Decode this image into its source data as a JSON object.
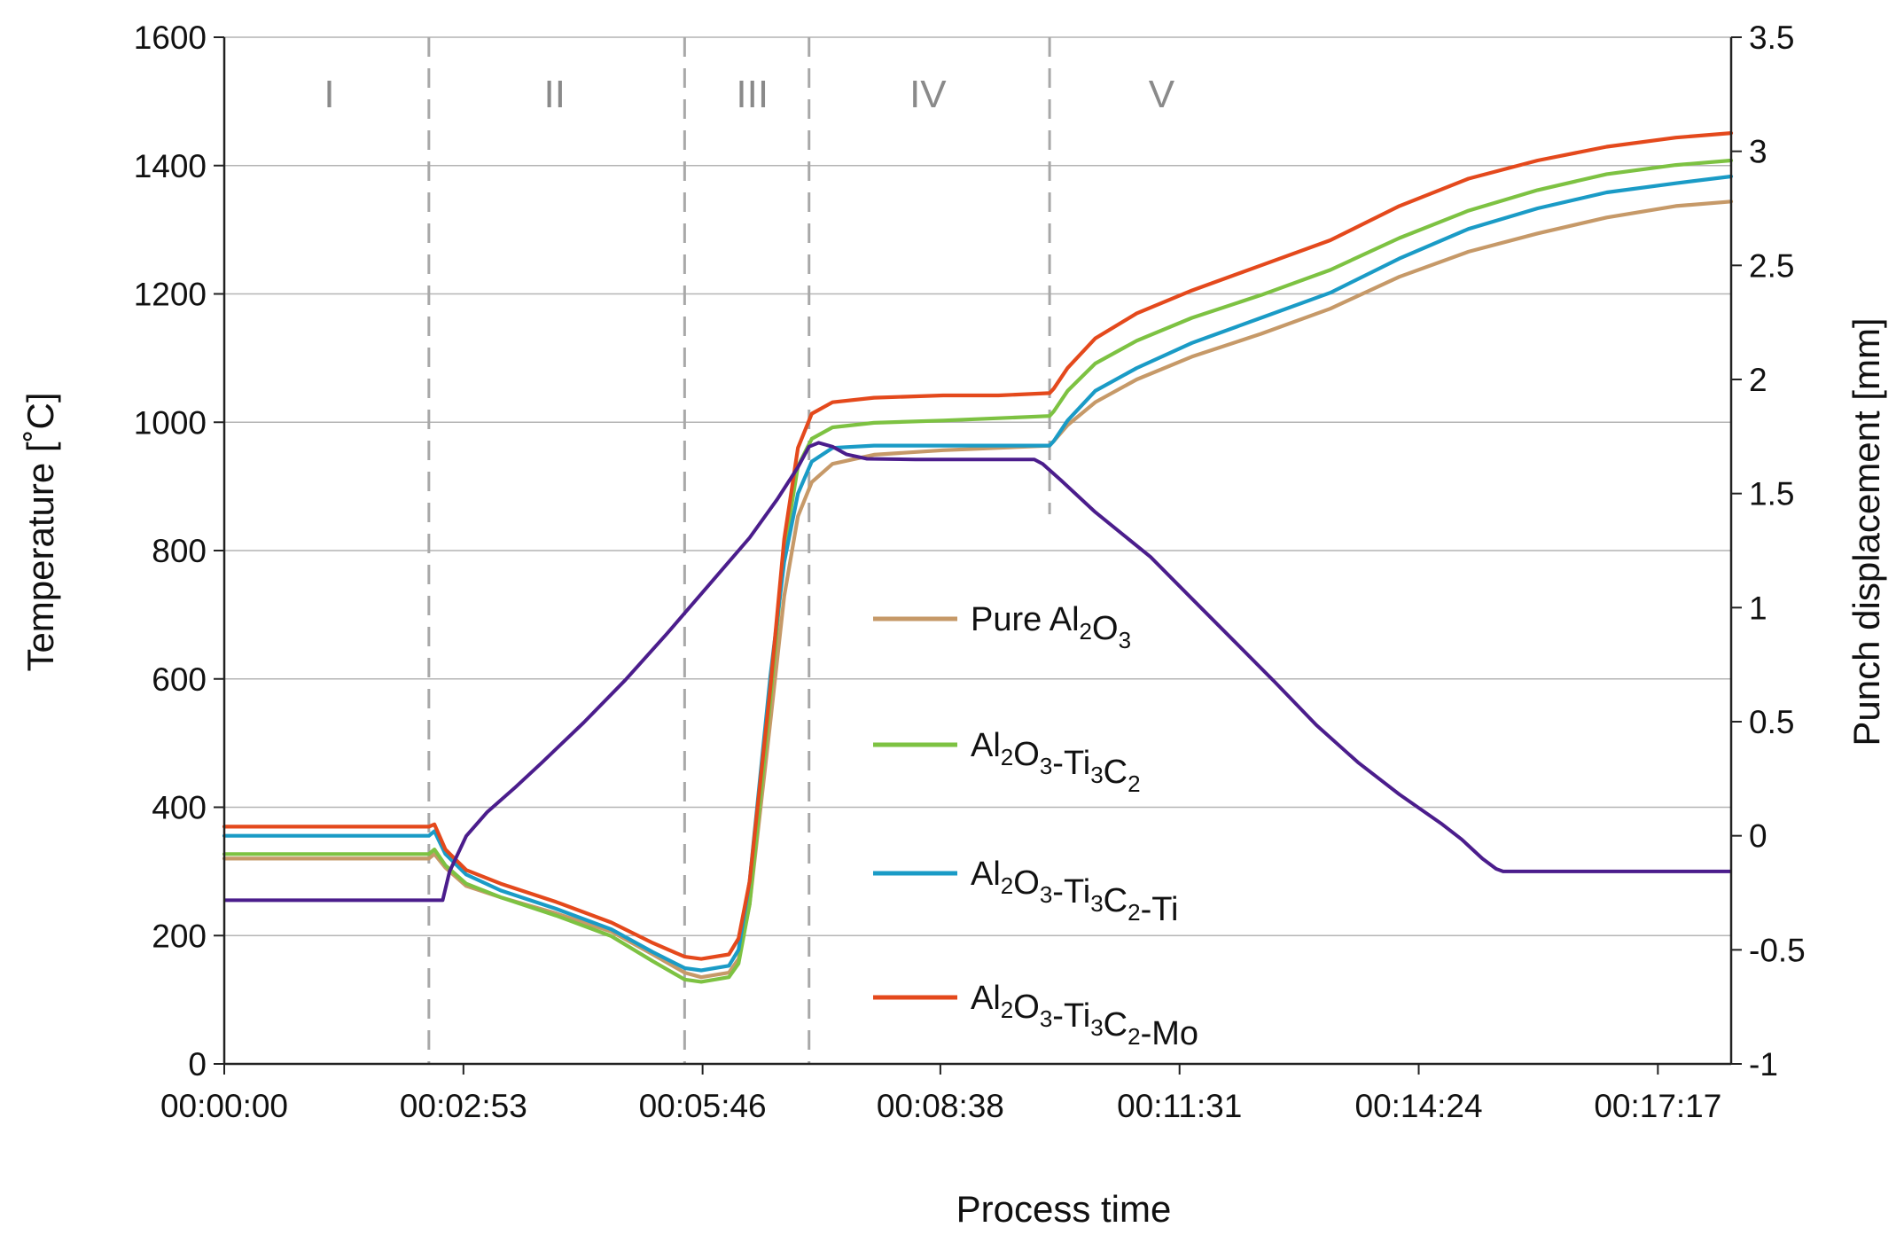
{
  "chart_data": {
    "type": "line",
    "xlabel": "Process time",
    "ylabel_left": "Temperature [˚C]",
    "ylabel_right": "Punch displacement [mm]",
    "x_tick_labels": [
      "00:00:00",
      "00:02:53",
      "00:05:46",
      "00:08:38",
      "00:11:31",
      "00:14:24",
      "00:17:17"
    ],
    "x_range_seconds": [
      0,
      1090
    ],
    "x_tick_seconds": [
      0,
      173,
      346,
      518,
      691,
      864,
      1037
    ],
    "ylim_left": [
      0,
      1600
    ],
    "yticks_left": [
      "0",
      "200",
      "400",
      "600",
      "800",
      "1000",
      "1200",
      "1400",
      "1600"
    ],
    "ylim_right": [
      -1,
      3.5
    ],
    "yticks_right": [
      "-1",
      "-0.5",
      "0",
      "0.5",
      "1",
      "1.5",
      "2",
      "2.5",
      "3",
      "3.5"
    ],
    "grid": "horizontal",
    "phases": [
      {
        "label": "I",
        "boundary_seconds": 148
      },
      {
        "label": "II",
        "boundary_seconds": 333
      },
      {
        "label": "III",
        "boundary_seconds": 423
      },
      {
        "label": "IV",
        "boundary_seconds": 597
      },
      {
        "label": "V"
      }
    ],
    "phase_label_positions_seconds": [
      76,
      239,
      382,
      509,
      678
    ],
    "temperature": {
      "axis": "left",
      "color": "#4b1d8c",
      "points": [
        [
          0,
          255
        ],
        [
          158,
          255
        ],
        [
          163,
          300
        ],
        [
          175,
          355
        ],
        [
          190,
          392
        ],
        [
          210,
          430
        ],
        [
          230,
          470
        ],
        [
          260,
          532
        ],
        [
          290,
          598
        ],
        [
          320,
          670
        ],
        [
          350,
          745
        ],
        [
          380,
          820
        ],
        [
          400,
          880
        ],
        [
          415,
          930
        ],
        [
          423,
          962
        ],
        [
          430,
          968
        ],
        [
          440,
          962
        ],
        [
          450,
          950
        ],
        [
          465,
          943
        ],
        [
          500,
          942
        ],
        [
          540,
          942
        ],
        [
          586,
          942
        ],
        [
          592,
          935
        ],
        [
          605,
          910
        ],
        [
          630,
          860
        ],
        [
          670,
          790
        ],
        [
          700,
          725
        ],
        [
          730,
          660
        ],
        [
          760,
          595
        ],
        [
          790,
          528
        ],
        [
          820,
          470
        ],
        [
          850,
          420
        ],
        [
          880,
          375
        ],
        [
          895,
          350
        ],
        [
          910,
          320
        ],
        [
          920,
          304
        ],
        [
          925,
          300
        ],
        [
          1090,
          300
        ]
      ]
    },
    "series": [
      {
        "name": "Pure Al2O3",
        "name_base": [
          "Pure Al",
          "O"
        ],
        "name_sub": [
          "2",
          "3"
        ],
        "name_tail": "",
        "axis": "right",
        "color": "#c69968",
        "points": [
          [
            0,
            -0.1
          ],
          [
            148,
            -0.1
          ],
          [
            152,
            -0.08
          ],
          [
            160,
            -0.14
          ],
          [
            175,
            -0.22
          ],
          [
            200,
            -0.27
          ],
          [
            240,
            -0.34
          ],
          [
            280,
            -0.42
          ],
          [
            310,
            -0.52
          ],
          [
            333,
            -0.6
          ],
          [
            345,
            -0.62
          ],
          [
            365,
            -0.6
          ],
          [
            372,
            -0.54
          ],
          [
            380,
            -0.3
          ],
          [
            395,
            0.5
          ],
          [
            405,
            1.05
          ],
          [
            415,
            1.4
          ],
          [
            425,
            1.55
          ],
          [
            440,
            1.63
          ],
          [
            470,
            1.67
          ],
          [
            520,
            1.69
          ],
          [
            560,
            1.7
          ],
          [
            597,
            1.71
          ],
          [
            600,
            1.73
          ],
          [
            610,
            1.8
          ],
          [
            630,
            1.9
          ],
          [
            660,
            2.0
          ],
          [
            700,
            2.1
          ],
          [
            750,
            2.2
          ],
          [
            800,
            2.31
          ],
          [
            850,
            2.45
          ],
          [
            900,
            2.56
          ],
          [
            950,
            2.64
          ],
          [
            1000,
            2.71
          ],
          [
            1050,
            2.76
          ],
          [
            1090,
            2.78
          ]
        ]
      },
      {
        "name": "Al2O3-Ti3C2",
        "name_base": [
          "Al",
          "O",
          "-Ti",
          "C"
        ],
        "name_sub": [
          "2",
          "3",
          "3",
          "2"
        ],
        "name_tail": "",
        "axis": "right",
        "color": "#7dc242",
        "points": [
          [
            0,
            -0.08
          ],
          [
            148,
            -0.08
          ],
          [
            152,
            -0.06
          ],
          [
            160,
            -0.13
          ],
          [
            175,
            -0.21
          ],
          [
            200,
            -0.27
          ],
          [
            240,
            -0.35
          ],
          [
            280,
            -0.44
          ],
          [
            310,
            -0.55
          ],
          [
            333,
            -0.63
          ],
          [
            345,
            -0.64
          ],
          [
            365,
            -0.62
          ],
          [
            372,
            -0.56
          ],
          [
            380,
            -0.3
          ],
          [
            395,
            0.6
          ],
          [
            405,
            1.25
          ],
          [
            415,
            1.62
          ],
          [
            425,
            1.74
          ],
          [
            440,
            1.79
          ],
          [
            470,
            1.81
          ],
          [
            520,
            1.82
          ],
          [
            560,
            1.83
          ],
          [
            597,
            1.84
          ],
          [
            600,
            1.86
          ],
          [
            610,
            1.95
          ],
          [
            630,
            2.07
          ],
          [
            660,
            2.17
          ],
          [
            700,
            2.27
          ],
          [
            750,
            2.37
          ],
          [
            800,
            2.48
          ],
          [
            850,
            2.62
          ],
          [
            900,
            2.74
          ],
          [
            950,
            2.83
          ],
          [
            1000,
            2.9
          ],
          [
            1050,
            2.94
          ],
          [
            1090,
            2.96
          ]
        ]
      },
      {
        "name": "Al2O3-Ti3C2-Ti",
        "name_base": [
          "Al",
          "O",
          "-Ti",
          "C"
        ],
        "name_sub": [
          "2",
          "3",
          "3",
          "2"
        ],
        "name_tail": "-Ti",
        "axis": "right",
        "color": "#1a9bc6",
        "points": [
          [
            0,
            0
          ],
          [
            148,
            0
          ],
          [
            152,
            0.02
          ],
          [
            160,
            -0.08
          ],
          [
            175,
            -0.17
          ],
          [
            200,
            -0.24
          ],
          [
            240,
            -0.32
          ],
          [
            280,
            -0.41
          ],
          [
            310,
            -0.51
          ],
          [
            333,
            -0.58
          ],
          [
            345,
            -0.59
          ],
          [
            365,
            -0.57
          ],
          [
            372,
            -0.5
          ],
          [
            380,
            -0.2
          ],
          [
            395,
            0.7
          ],
          [
            405,
            1.2
          ],
          [
            415,
            1.5
          ],
          [
            425,
            1.64
          ],
          [
            440,
            1.7
          ],
          [
            470,
            1.71
          ],
          [
            520,
            1.71
          ],
          [
            560,
            1.71
          ],
          [
            597,
            1.71
          ],
          [
            600,
            1.73
          ],
          [
            610,
            1.82
          ],
          [
            630,
            1.95
          ],
          [
            660,
            2.05
          ],
          [
            700,
            2.16
          ],
          [
            750,
            2.27
          ],
          [
            800,
            2.38
          ],
          [
            850,
            2.53
          ],
          [
            900,
            2.66
          ],
          [
            950,
            2.75
          ],
          [
            1000,
            2.82
          ],
          [
            1050,
            2.86
          ],
          [
            1090,
            2.89
          ]
        ]
      },
      {
        "name": "Al2O3-Ti3C2-Mo",
        "name_base": [
          "Al",
          "O",
          "-Ti",
          "C"
        ],
        "name_sub": [
          "2",
          "3",
          "3",
          "2"
        ],
        "name_tail": "-Mo",
        "axis": "right",
        "color": "#e4491c",
        "points": [
          [
            0,
            0.04
          ],
          [
            148,
            0.04
          ],
          [
            152,
            0.05
          ],
          [
            160,
            -0.06
          ],
          [
            175,
            -0.15
          ],
          [
            200,
            -0.21
          ],
          [
            240,
            -0.29
          ],
          [
            280,
            -0.38
          ],
          [
            310,
            -0.47
          ],
          [
            333,
            -0.53
          ],
          [
            345,
            -0.54
          ],
          [
            365,
            -0.52
          ],
          [
            372,
            -0.45
          ],
          [
            380,
            -0.2
          ],
          [
            395,
            0.65
          ],
          [
            405,
            1.3
          ],
          [
            415,
            1.7
          ],
          [
            425,
            1.85
          ],
          [
            440,
            1.9
          ],
          [
            470,
            1.92
          ],
          [
            520,
            1.93
          ],
          [
            560,
            1.93
          ],
          [
            597,
            1.94
          ],
          [
            600,
            1.96
          ],
          [
            610,
            2.05
          ],
          [
            630,
            2.18
          ],
          [
            660,
            2.29
          ],
          [
            700,
            2.39
          ],
          [
            750,
            2.5
          ],
          [
            800,
            2.61
          ],
          [
            850,
            2.76
          ],
          [
            900,
            2.88
          ],
          [
            950,
            2.96
          ],
          [
            1000,
            3.02
          ],
          [
            1050,
            3.06
          ],
          [
            1090,
            3.08
          ]
        ]
      }
    ]
  }
}
